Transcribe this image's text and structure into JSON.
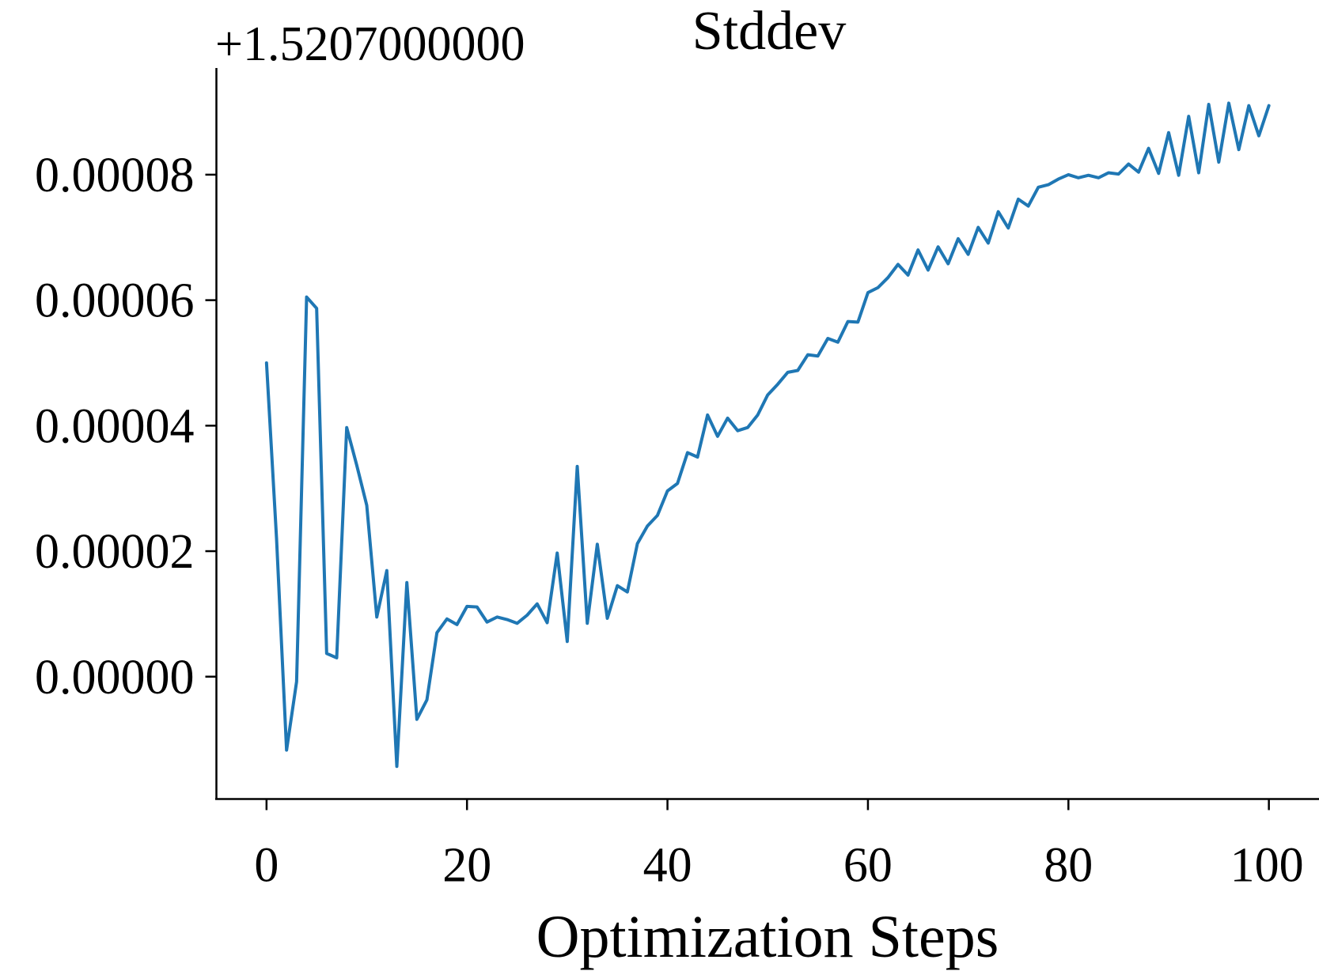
{
  "chart_data": {
    "type": "line",
    "title": "Stddev",
    "xlabel": "Optimization Steps",
    "ylabel": "",
    "y_offset_label": "+1.5207000000",
    "xlim": [
      -5,
      105
    ],
    "ylim": [
      -1.95e-05,
      9.7e-05
    ],
    "xticks": [
      0,
      20,
      40,
      60,
      80,
      100
    ],
    "xtick_labels": [
      "0",
      "20",
      "40",
      "60",
      "80",
      "100"
    ],
    "yticks": [
      0,
      2e-05,
      4e-05,
      6e-05,
      8e-05
    ],
    "ytick_labels": [
      "0.00000",
      "0.00002",
      "0.00004",
      "0.00006",
      "0.00008"
    ],
    "grid": false,
    "line_color": "#1f77b4",
    "series": [
      {
        "x": [
          0,
          1,
          2,
          3,
          4,
          5,
          6,
          7,
          8,
          9,
          10,
          11,
          12,
          13,
          14,
          15,
          16,
          17,
          18,
          19,
          20,
          21,
          22,
          23,
          24,
          25,
          26,
          27,
          28,
          29,
          30,
          31,
          32,
          33,
          34,
          35,
          36,
          37,
          38,
          39,
          40,
          41,
          42,
          43,
          44,
          45,
          46,
          47,
          48,
          49,
          50,
          51,
          52,
          53,
          54,
          55,
          56,
          57,
          58,
          59,
          60,
          61,
          62,
          63,
          64,
          65,
          66,
          67,
          68,
          69,
          70,
          71,
          72,
          73,
          74,
          75,
          76,
          77,
          78,
          79,
          80,
          81,
          82,
          83,
          84,
          85,
          86,
          87,
          88,
          89,
          90,
          91,
          92,
          93,
          94,
          95,
          96,
          97,
          98,
          99,
          100
        ],
        "values": [
          5e-05,
          2.2e-05,
          -1.17e-05,
          -8e-07,
          6.05e-05,
          5.87e-05,
          3.7e-06,
          3e-06,
          3.97e-05,
          3.37e-05,
          2.73e-05,
          9.5e-06,
          1.69e-05,
          -1.43e-05,
          1.5e-05,
          -6.8e-06,
          -3.7e-06,
          7e-06,
          9.2e-06,
          8.3e-06,
          1.12e-05,
          1.11e-05,
          8.7e-06,
          9.5e-06,
          9.1e-06,
          8.5e-06,
          9.8e-06,
          1.16e-05,
          8.6e-06,
          1.97e-05,
          5.6e-06,
          3.35e-05,
          8.5e-06,
          2.11e-05,
          9.3e-06,
          1.45e-05,
          1.35e-05,
          2.12e-05,
          2.4e-05,
          2.57e-05,
          2.96e-05,
          3.08e-05,
          3.57e-05,
          3.5e-05,
          4.17e-05,
          3.83e-05,
          4.12e-05,
          3.92e-05,
          3.97e-05,
          4.17e-05,
          4.49e-05,
          4.66e-05,
          4.85e-05,
          4.88e-05,
          5.13e-05,
          5.11e-05,
          5.39e-05,
          5.33e-05,
          5.66e-05,
          5.65e-05,
          6.12e-05,
          6.2e-05,
          6.36e-05,
          6.57e-05,
          6.4e-05,
          6.8e-05,
          6.48e-05,
          6.85e-05,
          6.58e-05,
          6.98e-05,
          6.73e-05,
          7.16e-05,
          6.91e-05,
          7.41e-05,
          7.15e-05,
          7.61e-05,
          7.5e-05,
          7.8e-05,
          7.84e-05,
          7.93e-05,
          8e-05,
          7.95e-05,
          7.99e-05,
          7.95e-05,
          8.03e-05,
          8.01e-05,
          8.17e-05,
          8.04e-05,
          8.42e-05,
          8.02e-05,
          8.67e-05,
          7.99e-05,
          8.93e-05,
          8.03e-05,
          9.12e-05,
          8.2e-05,
          9.14e-05,
          8.4e-05,
          9.1e-05,
          8.62e-05,
          9.1e-05
        ]
      }
    ]
  }
}
